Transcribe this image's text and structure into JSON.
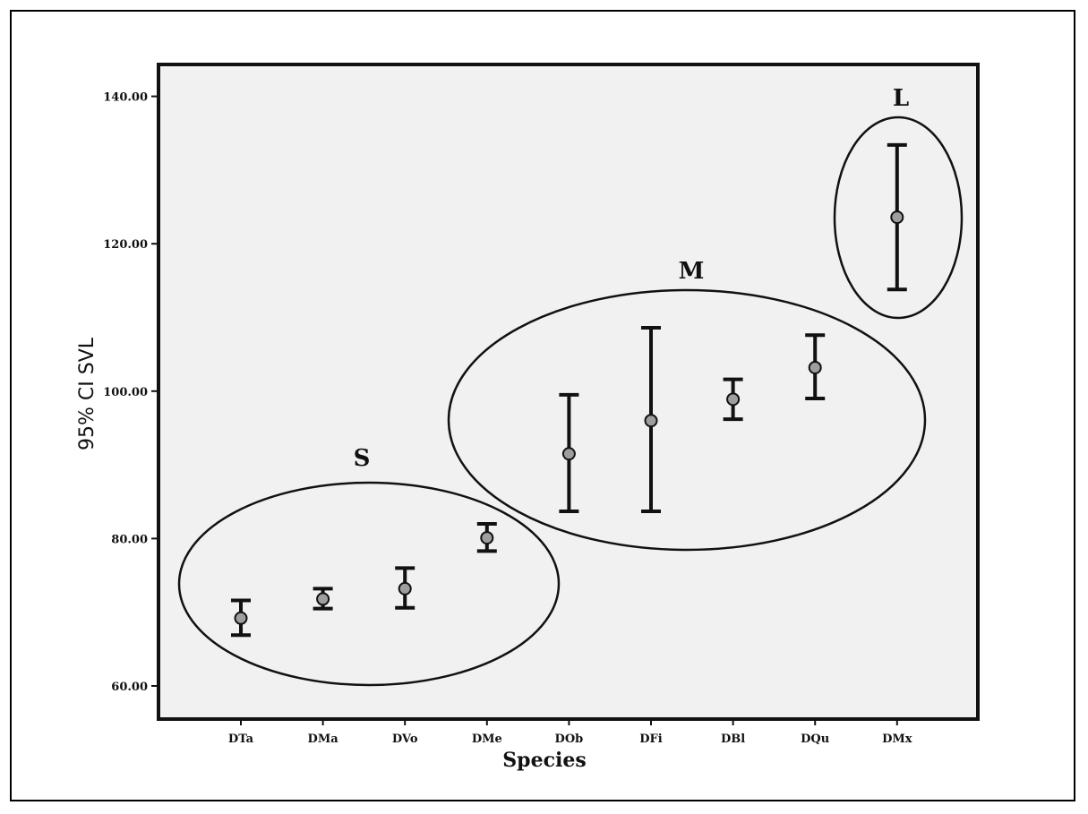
{
  "chart_data": {
    "type": "scatter",
    "title": "",
    "xlabel": "Species",
    "ylabel": "95% CI SVL",
    "ylim": [
      55,
      145
    ],
    "yticks": [
      60,
      80,
      100,
      120,
      140
    ],
    "ytick_labels": [
      "60.00",
      "80.00",
      "100.00",
      "120.00",
      "140.00"
    ],
    "grid": false,
    "categories": [
      "DTa",
      "DMa",
      "DVo",
      "DMe",
      "DOb",
      "DFi",
      "DBl",
      "DQu",
      "DMx"
    ],
    "means": [
      69.2,
      71.8,
      73.2,
      80.1,
      91.5,
      96.0,
      98.9,
      103.2,
      123.6
    ],
    "ci_lower": [
      66.9,
      70.5,
      70.6,
      78.3,
      83.7,
      83.7,
      96.2,
      99.0,
      113.8
    ],
    "ci_upper": [
      71.6,
      73.2,
      76.0,
      82.0,
      99.5,
      108.6,
      101.6,
      107.6,
      133.4
    ],
    "groups": [
      {
        "label": "S",
        "members": [
          "DTa",
          "DMa",
          "DVo",
          "DMe"
        ]
      },
      {
        "label": "M",
        "members": [
          "DOb",
          "DFi",
          "DBl",
          "DQu"
        ]
      },
      {
        "label": "L",
        "members": [
          "DMx"
        ]
      }
    ]
  },
  "colors": {
    "plot_background": "#f1f1f1",
    "marker_fill": "#9e9e9e",
    "ink": "#111111"
  }
}
